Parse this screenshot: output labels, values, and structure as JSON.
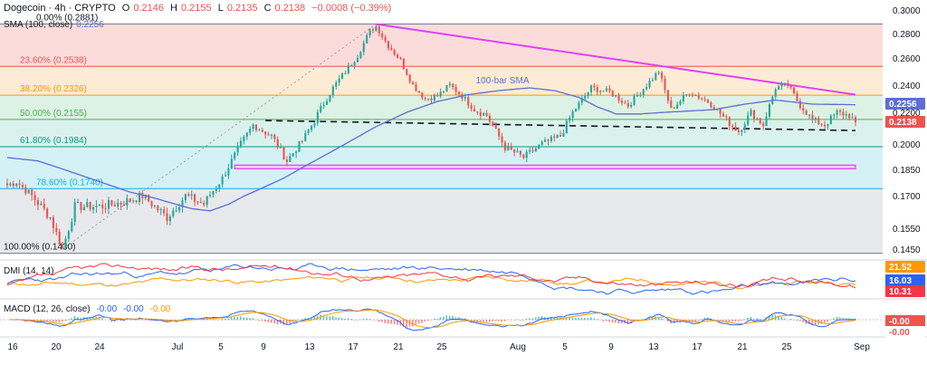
{
  "header": {
    "title": "Dogecoin · 4h · CRYPTO",
    "o_label": "O",
    "o": "0.2146",
    "h_label": "H",
    "h": "0.2155",
    "l_label": "L",
    "l": "0.2135",
    "c_label": "C",
    "c": "0.2138",
    "change": "−0.0008 (−0.39%)",
    "sma_label": "SMA (100, close)",
    "sma_value": "0.2256"
  },
  "colors": {
    "up": "#26a69a",
    "down": "#ef5350",
    "sma": "#5b6fd6",
    "trend_resistance": "#e040fb",
    "support_zone": "#e040fb",
    "dashed_support": "#131722",
    "zone_red": "#fbd5d5",
    "zone_orange": "#fde7cf",
    "zone_green": "#d7eedf",
    "zone_teal": "#d4f0ea",
    "zone_cyan": "#cdeef4",
    "zone_gray": "#e3e5ea",
    "dmi_plus": "#2962ff",
    "dmi_minus": "#f23645",
    "dmi_adx": "#ff9800",
    "macd_line": "#2962ff",
    "macd_signal": "#ff9800"
  },
  "chart_data": {
    "type": "candlestick",
    "price_axis": {
      "min": 0.14,
      "max": 0.3,
      "ticks": [
        "0.3000",
        "0.2800",
        "0.2600",
        "0.2400",
        "0.2200",
        "0.2000",
        "0.1850",
        "0.1700",
        "0.1550",
        "0.1450"
      ]
    },
    "fib_levels": [
      {
        "label": "0.00% (0.2881)",
        "price": 0.2881
      },
      {
        "label": "23.60% (0.2538)",
        "price": 0.2538
      },
      {
        "label": "38.20% (0.2326)",
        "price": 0.2326
      },
      {
        "label": "50.00% (0.2155)",
        "price": 0.2155
      },
      {
        "label": "61.80% (0.1984)",
        "price": 0.1984
      },
      {
        "label": "78.60% (0.1740)",
        "price": 0.174
      },
      {
        "label": "100.00% (0.1430)",
        "price": 0.143
      }
    ],
    "sma_annotation": "100-bar SMA",
    "right_labels": {
      "sma": "0.2256",
      "close": "0.2138"
    },
    "dmi": {
      "label": "DMI (14, 14)",
      "values": [
        "21.52",
        "16.03",
        "10.31"
      ]
    },
    "macd": {
      "label": "MACD (12, 26, close)",
      "values": [
        "-0.00",
        "-0.00",
        "-0.00"
      ],
      "right": [
        "-0.00",
        "-0.00"
      ]
    },
    "x_ticks": [
      "16",
      "20",
      "24",
      "Jul",
      "5",
      "9",
      "13",
      "17",
      "21",
      "25",
      "Aug",
      "5",
      "9",
      "13",
      "17",
      "21",
      "25",
      "Sep"
    ],
    "anchors": [
      [
        0,
        0.176
      ],
      [
        3,
        0.178
      ],
      [
        8,
        0.17
      ],
      [
        14,
        0.16
      ],
      [
        18,
        0.145
      ],
      [
        22,
        0.165
      ],
      [
        30,
        0.165
      ],
      [
        38,
        0.167
      ],
      [
        44,
        0.17
      ],
      [
        52,
        0.16
      ],
      [
        58,
        0.17
      ],
      [
        64,
        0.166
      ],
      [
        70,
        0.18
      ],
      [
        76,
        0.2
      ],
      [
        80,
        0.212
      ],
      [
        86,
        0.205
      ],
      [
        91,
        0.19
      ],
      [
        96,
        0.202
      ],
      [
        100,
        0.215
      ],
      [
        106,
        0.238
      ],
      [
        110,
        0.25
      ],
      [
        114,
        0.262
      ],
      [
        118,
        0.282
      ],
      [
        120,
        0.286
      ],
      [
        124,
        0.27
      ],
      [
        128,
        0.258
      ],
      [
        132,
        0.24
      ],
      [
        136,
        0.23
      ],
      [
        140,
        0.232
      ],
      [
        144,
        0.24
      ],
      [
        148,
        0.232
      ],
      [
        152,
        0.222
      ],
      [
        156,
        0.218
      ],
      [
        162,
        0.198
      ],
      [
        168,
        0.192
      ],
      [
        174,
        0.2
      ],
      [
        180,
        0.205
      ],
      [
        184,
        0.22
      ],
      [
        190,
        0.238
      ],
      [
        196,
        0.235
      ],
      [
        202,
        0.225
      ],
      [
        208,
        0.24
      ],
      [
        212,
        0.25
      ],
      [
        216,
        0.222
      ],
      [
        222,
        0.235
      ],
      [
        228,
        0.228
      ],
      [
        234,
        0.215
      ],
      [
        238,
        0.208
      ],
      [
        242,
        0.22
      ],
      [
        246,
        0.212
      ],
      [
        250,
        0.238
      ],
      [
        254,
        0.24
      ],
      [
        258,
        0.225
      ],
      [
        262,
        0.215
      ],
      [
        266,
        0.212
      ],
      [
        270,
        0.22
      ],
      [
        274,
        0.218
      ],
      [
        276,
        0.2138
      ]
    ],
    "sma_anchors": [
      [
        0,
        0.192
      ],
      [
        10,
        0.19
      ],
      [
        20,
        0.184
      ],
      [
        30,
        0.178
      ],
      [
        40,
        0.172
      ],
      [
        50,
        0.168
      ],
      [
        60,
        0.164
      ],
      [
        66,
        0.163
      ],
      [
        72,
        0.166
      ],
      [
        80,
        0.172
      ],
      [
        90,
        0.18
      ],
      [
        100,
        0.19
      ],
      [
        110,
        0.2
      ],
      [
        120,
        0.211
      ],
      [
        130,
        0.22
      ],
      [
        140,
        0.228
      ],
      [
        150,
        0.233
      ],
      [
        160,
        0.236
      ],
      [
        170,
        0.238
      ],
      [
        178,
        0.236
      ],
      [
        186,
        0.231
      ],
      [
        192,
        0.224
      ],
      [
        198,
        0.219
      ],
      [
        206,
        0.219
      ],
      [
        214,
        0.22
      ],
      [
        222,
        0.221
      ],
      [
        230,
        0.222
      ],
      [
        240,
        0.226
      ],
      [
        250,
        0.229
      ],
      [
        262,
        0.226
      ],
      [
        276,
        0.2256
      ]
    ],
    "bar_count": 277
  }
}
